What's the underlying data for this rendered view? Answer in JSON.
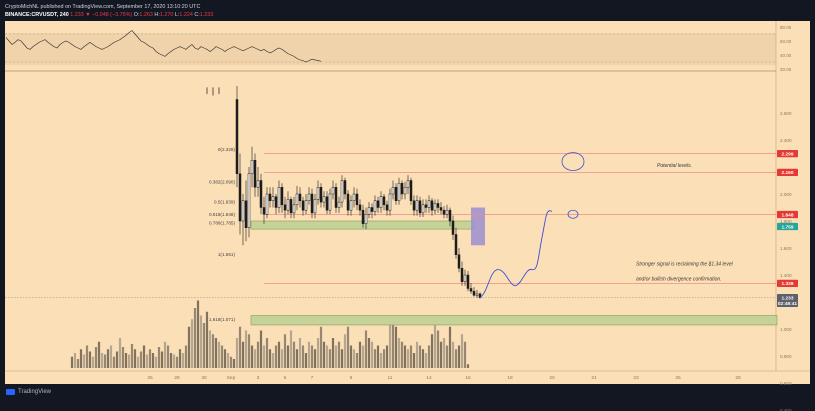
{
  "header": {
    "line1": "CryptoMichNL published on TradingView.com, September 17, 2020 13:10:20 UTC",
    "symbol": "BINANCE:CRVUSDT, 240",
    "last": "1.233",
    "change": "−0.048 (−3.75%)",
    "o": "O:",
    "o_val": "1.263",
    "h": "H:",
    "h_val": "1.270",
    "l": "L:",
    "l_val": "1.224",
    "c": "C:",
    "c_val": "1.233"
  },
  "footer": {
    "brand": "TradingView"
  },
  "colors": {
    "background": "#fbdfb7",
    "frame": "#131722",
    "candle": "#1c1c1c",
    "fib_line": "#f28b82",
    "zone": "#c5d39a",
    "zone_border": "#8c9b4a",
    "highlight": "#9b8fd0",
    "annotation": "#3a4ed8",
    "badge_red": "#e53935",
    "badge_green": "#26a69a",
    "badge_grey": "#5d606b"
  },
  "chart_data": {
    "type": "candlestick",
    "title": "",
    "xlabel": "",
    "ylabel": "",
    "ylim": [
      0.3,
      2.8
    ],
    "x_ticks": [
      {
        "label": "25",
        "i": -29
      },
      {
        "label": "28",
        "i": -20
      },
      {
        "label": "30",
        "i": -11
      },
      {
        "label": "Sep",
        "i": -2
      },
      {
        "label": "3",
        "i": 7
      },
      {
        "label": "5",
        "i": 16
      },
      {
        "label": "7",
        "i": 25
      },
      {
        "label": "9",
        "i": 38
      },
      {
        "label": "11",
        "i": 51
      },
      {
        "label": "14",
        "i": 64
      },
      {
        "label": "15",
        "i": 77
      },
      {
        "label": "18",
        "i": 91
      },
      {
        "label": "20",
        "i": 105
      },
      {
        "label": "21",
        "i": 119
      },
      {
        "label": "23",
        "i": 133
      },
      {
        "label": "25",
        "i": 147
      },
      {
        "label": "28",
        "i": 167
      },
      {
        "label": "O",
        "i": 185
      }
    ],
    "y_ticks": [
      {
        "label": "2.600",
        "v": 2.6
      },
      {
        "label": "2.400",
        "v": 2.4
      },
      {
        "label": "2.000",
        "v": 2.0
      },
      {
        "label": "1.800",
        "v": 1.8
      },
      {
        "label": "1.600",
        "v": 1.6
      },
      {
        "label": "1.400",
        "v": 1.4
      },
      {
        "label": "1.000",
        "v": 1.0
      },
      {
        "label": "0.800",
        "v": 0.8
      },
      {
        "label": "0.600",
        "v": 0.6
      },
      {
        "label": "0.400",
        "v": 0.4
      }
    ],
    "rsi_ticks": [
      {
        "label": "80.00",
        "v": 80
      },
      {
        "label": "60.00",
        "v": 60
      },
      {
        "label": "40.00",
        "v": 40
      },
      {
        "label": "20.00",
        "v": 20
      }
    ],
    "fib_levels": [
      {
        "label": "0(2.328)",
        "value": 2.328
      },
      {
        "label": "0.382(2.090)",
        "value": 2.09
      },
      {
        "label": "0.5(1.939)",
        "value": 1.939
      },
      {
        "label": "0.618(1.848)",
        "value": 1.848
      },
      {
        "label": "0.786(1.785)",
        "value": 1.785
      },
      {
        "label": "1(1.551)",
        "value": 1.551
      },
      {
        "label": "1.618(1.071)",
        "value": 1.071
      }
    ],
    "price_badges": [
      {
        "label": "2.299",
        "value": 2.299,
        "color": "red"
      },
      {
        "label": "2.160",
        "value": 2.16,
        "color": "red"
      },
      {
        "label": "1.848",
        "value": 1.848,
        "color": "red"
      },
      {
        "label": "1.759",
        "value": 1.759,
        "color": "green"
      },
      {
        "label": "1.338",
        "value": 1.338,
        "color": "red"
      },
      {
        "label": "1.233",
        "value": 1.233,
        "color": "grey"
      },
      {
        "label": "02:49:41",
        "value": 1.19,
        "color": "grey"
      }
    ],
    "horizontal_lines": [
      2.299,
      2.16,
      1.848,
      1.338
    ],
    "zones": [
      {
        "low": 1.74,
        "high": 1.8,
        "from_i": 1,
        "to_i": 79
      },
      {
        "low": 1.03,
        "high": 1.1,
        "from_i": 1,
        "to_i": 180
      }
    ],
    "highlight_box": {
      "low": 1.62,
      "high": 1.9,
      "from_i": 79,
      "to_i": 83
    },
    "annotations": [
      {
        "text": "Potential levels.",
        "i": 140,
        "v": 2.2
      },
      {
        "text": "Stronger signal is reclaiming the $1.34 level",
        "i": 133,
        "v": 1.47
      },
      {
        "text": "and/or bullish divergence confirmation.",
        "i": 133,
        "v": 1.36
      }
    ],
    "candles": {
      "open": [
        2.7,
        2.15,
        1.8,
        1.95,
        1.75,
        2.15,
        2.25,
        2.05,
        2.1,
        1.9,
        1.85,
        2.0,
        1.95,
        1.98,
        1.9,
        2.05,
        1.92,
        1.88,
        1.96,
        1.86,
        1.92,
        2.0,
        1.95,
        1.88,
        1.95,
        2.0,
        1.86,
        1.96,
        2.05,
        1.94,
        1.98,
        1.88,
        2.0,
        2.05,
        1.9,
        1.94,
        2.1,
        2.0,
        1.88,
        1.95,
        2.0,
        1.92,
        1.88,
        1.78,
        1.85,
        1.9,
        1.87,
        1.95,
        1.9,
        1.98,
        1.92,
        1.88,
        2.0,
        2.05,
        1.95,
        2.08,
        2.0,
        2.05,
        2.1,
        1.95,
        1.88,
        1.95,
        1.86,
        1.92,
        1.9,
        1.95,
        1.88,
        1.93,
        1.9,
        1.88,
        1.85,
        1.88,
        1.8,
        1.7,
        1.55,
        1.45,
        1.35,
        1.4,
        1.3,
        1.28,
        1.25,
        1.26
      ],
      "close": [
        2.15,
        1.8,
        1.95,
        1.75,
        2.15,
        2.25,
        2.05,
        2.1,
        1.9,
        1.85,
        2.0,
        1.95,
        1.98,
        1.9,
        2.05,
        1.92,
        1.88,
        1.96,
        1.86,
        1.92,
        2.0,
        1.95,
        1.88,
        1.95,
        2.0,
        1.86,
        1.96,
        2.05,
        1.94,
        1.98,
        1.88,
        2.0,
        2.05,
        1.9,
        1.94,
        2.1,
        2.0,
        1.88,
        1.95,
        2.0,
        1.92,
        1.88,
        1.78,
        1.85,
        1.9,
        1.87,
        1.95,
        1.9,
        1.98,
        1.92,
        1.88,
        2.0,
        2.05,
        1.95,
        2.08,
        2.0,
        2.05,
        2.1,
        1.95,
        1.88,
        1.95,
        1.86,
        1.92,
        1.9,
        1.95,
        1.88,
        1.93,
        1.9,
        1.88,
        1.85,
        1.88,
        1.8,
        1.7,
        1.55,
        1.45,
        1.35,
        1.4,
        1.3,
        1.28,
        1.25,
        1.26,
        1.233
      ],
      "high": [
        2.8,
        2.3,
        2.0,
        2.1,
        2.2,
        2.35,
        2.3,
        2.2,
        2.15,
        1.98,
        2.05,
        2.05,
        2.05,
        2.0,
        2.1,
        2.08,
        1.98,
        2.02,
        1.98,
        1.98,
        2.06,
        2.05,
        1.98,
        2.0,
        2.05,
        2.04,
        2.0,
        2.1,
        2.08,
        2.02,
        2.02,
        2.04,
        2.1,
        2.08,
        1.98,
        2.14,
        2.12,
        2.03,
        1.99,
        2.05,
        2.04,
        1.96,
        1.92,
        1.9,
        1.94,
        1.93,
        1.99,
        1.98,
        2.02,
        2.0,
        1.95,
        2.04,
        2.1,
        2.08,
        2.12,
        2.1,
        2.09,
        2.14,
        2.12,
        1.99,
        1.99,
        1.98,
        1.96,
        1.96,
        1.99,
        1.97,
        1.96,
        1.96,
        1.94,
        1.91,
        1.92,
        1.9,
        1.84,
        1.75,
        1.6,
        1.5,
        1.44,
        1.43,
        1.34,
        1.31,
        1.29,
        1.27
      ],
      "low": [
        2.05,
        1.7,
        1.62,
        1.65,
        1.68,
        2.05,
        1.98,
        1.98,
        1.85,
        1.78,
        1.82,
        1.9,
        1.9,
        1.85,
        1.86,
        1.86,
        1.82,
        1.85,
        1.82,
        1.82,
        1.88,
        1.9,
        1.84,
        1.85,
        1.92,
        1.82,
        1.82,
        1.92,
        1.9,
        1.9,
        1.85,
        1.85,
        1.96,
        1.86,
        1.86,
        1.9,
        1.96,
        1.84,
        1.84,
        1.9,
        1.88,
        1.84,
        1.75,
        1.74,
        1.82,
        1.82,
        1.84,
        1.86,
        1.86,
        1.88,
        1.84,
        1.84,
        1.96,
        1.92,
        1.92,
        1.96,
        1.96,
        2.0,
        1.92,
        1.84,
        1.84,
        1.83,
        1.83,
        1.86,
        1.86,
        1.84,
        1.85,
        1.86,
        1.85,
        1.82,
        1.82,
        1.76,
        1.66,
        1.52,
        1.42,
        1.32,
        1.32,
        1.28,
        1.26,
        1.24,
        1.23,
        1.224
      ]
    },
    "volume": {
      "start_i": -55,
      "values": [
        0.15,
        0.2,
        0.12,
        0.25,
        0.18,
        0.3,
        0.22,
        0.15,
        0.28,
        0.35,
        0.2,
        0.18,
        0.25,
        0.3,
        0.15,
        0.22,
        0.4,
        0.28,
        0.2,
        0.18,
        0.32,
        0.25,
        0.15,
        0.22,
        0.3,
        0.18,
        0.25,
        0.2,
        0.15,
        0.28,
        0.22,
        0.35,
        0.3,
        0.2,
        0.18,
        0.15,
        0.25,
        0.2,
        0.3,
        0.55,
        0.65,
        0.8,
        0.9,
        0.7,
        0.6,
        0.75,
        0.5,
        0.45,
        0.4,
        0.35,
        0.3,
        0.25,
        0.2,
        0.15,
        0.12,
        0.4,
        0.55,
        0.35,
        0.5,
        0.45,
        0.3,
        0.25,
        0.35,
        0.5,
        0.3,
        0.4,
        0.25,
        0.2,
        0.3,
        0.35,
        0.25,
        0.45,
        0.3,
        0.5,
        0.35,
        0.25,
        0.4,
        0.3,
        0.2,
        0.35,
        0.3,
        0.25,
        0.4,
        0.55,
        0.35,
        0.3,
        0.25,
        0.4,
        0.3,
        0.35,
        0.25,
        0.45,
        0.55,
        0.3,
        0.25,
        0.2,
        0.35,
        0.3,
        0.5,
        0.4,
        0.35,
        0.25,
        0.3,
        0.2,
        0.25,
        0.3,
        0.65,
        0.7,
        0.55,
        0.4,
        0.35,
        0.3,
        0.25,
        0.3,
        0.2,
        0.35,
        0.3,
        0.25,
        0.2,
        0.3,
        0.45,
        0.6,
        0.5,
        0.35,
        0.4,
        0.3,
        0.55,
        0.35,
        0.25,
        0.3,
        0.45,
        0.35,
        0.05
      ]
    },
    "rsi": [
      48,
      52,
      55,
      60,
      58,
      62,
      65,
      60,
      55,
      58,
      62,
      60,
      55,
      50,
      48,
      52,
      55,
      58,
      60,
      62,
      58,
      55,
      52,
      50,
      55,
      58,
      60,
      58,
      55,
      52,
      50,
      48,
      52,
      55,
      58,
      55,
      52,
      50,
      48,
      50,
      52,
      55,
      58,
      60,
      62,
      65,
      68,
      72,
      75,
      70,
      65,
      60,
      58,
      55,
      52,
      50,
      45,
      42,
      40,
      38,
      42,
      45,
      48,
      50,
      52,
      50,
      48,
      52,
      55,
      50,
      48,
      52,
      50,
      48,
      45,
      48,
      52,
      50,
      48,
      45,
      48,
      50,
      52,
      50,
      48,
      46,
      48,
      50,
      52,
      50,
      48,
      46,
      48,
      45,
      43,
      45,
      48,
      50,
      48,
      45,
      42,
      40,
      38,
      35,
      33,
      32,
      30,
      32,
      34,
      33,
      32,
      31
    ]
  }
}
